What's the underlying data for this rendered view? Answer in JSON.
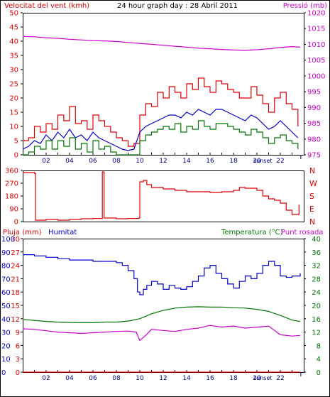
{
  "header": {
    "left_title": "Velocitat del vent (kmh)",
    "center_title": "24 hour graph day : 28 Abril 2011",
    "right_title": "Pressió (mb)"
  },
  "bottom_header": {
    "left_title_1": "Pluja (mm)",
    "left_title_2": "Humitat",
    "right_title_1": "Temperatura (°C)",
    "right_title_2": "Punt rosada"
  },
  "colors": {
    "wind_gust": "#dd0000",
    "wind_avg": "#0000cc",
    "wind_min": "#007700",
    "pressure": "#cc00cc",
    "direction": "#dd0000",
    "rain": "#dd0000",
    "humidity": "#0000cc",
    "temperature": "#007700",
    "dewpoint": "#cc00cc",
    "frame": "#000000",
    "grid": "#cccccc",
    "bg": "#ffffff"
  },
  "chart_data": [
    {
      "id": "wind_pressure",
      "type": "line",
      "title": "24 hour graph day : 28 Abril 2011",
      "xlabel": "",
      "x_ticks": [
        "02",
        "04",
        "06",
        "08",
        "10",
        "12",
        "14",
        "16",
        "18",
        "20",
        "22"
      ],
      "annotation": "sunset",
      "ylabel_left": "Velocitat del vent (kmh)",
      "ylim_left": [
        0,
        50
      ],
      "yticks_left": [
        0,
        5,
        10,
        15,
        20,
        25,
        30,
        35,
        40,
        45,
        50
      ],
      "ylabel_right": "Pressió (mb)",
      "ylim_right": [
        975,
        1020
      ],
      "yticks_right": [
        975,
        980,
        985,
        990,
        995,
        1000,
        1005,
        1010,
        1015,
        1020
      ],
      "grid": false,
      "series": [
        {
          "key": "wind_gust",
          "axis": "left",
          "step": true,
          "x": [
            0,
            0.5,
            1.0,
            1.5,
            2.0,
            2.5,
            3.0,
            3.5,
            4.0,
            4.5,
            5.0,
            5.5,
            6.0,
            6.5,
            7.0,
            7.5,
            8.0,
            8.5,
            9.0,
            9.5,
            10.0,
            10.5,
            11.0,
            11.5,
            12.0,
            12.5,
            13.0,
            13.5,
            14.0,
            14.5,
            15.0,
            15.5,
            16.0,
            16.5,
            17.0,
            17.5,
            18.0,
            18.5,
            19.0,
            19.5,
            20.0,
            20.5,
            21.0,
            21.5,
            22.0,
            22.5,
            23.0,
            23.5
          ],
          "y": [
            5,
            6,
            10,
            8,
            11,
            9,
            14,
            12,
            17,
            11,
            12,
            9,
            14,
            12,
            10,
            8,
            6,
            5,
            3,
            4,
            14,
            18,
            17,
            22,
            20,
            24,
            22,
            20,
            25,
            23,
            27,
            24,
            22,
            26,
            25,
            23,
            22,
            20,
            20,
            24,
            21,
            18,
            15,
            20,
            22,
            18,
            16,
            10
          ]
        },
        {
          "key": "wind_avg",
          "axis": "left",
          "step": false,
          "x": [
            0,
            0.5,
            1.0,
            1.5,
            2.0,
            2.5,
            3.0,
            3.5,
            4.0,
            4.5,
            5.0,
            5.5,
            6.0,
            6.5,
            7.0,
            7.5,
            8.0,
            8.5,
            9.0,
            9.5,
            10.0,
            10.5,
            11.0,
            11.5,
            12.0,
            12.5,
            13.0,
            13.5,
            14.0,
            14.5,
            15.0,
            15.5,
            16.0,
            16.5,
            17.0,
            17.5,
            18.0,
            18.5,
            19.0,
            19.5,
            20.0,
            20.5,
            21.0,
            21.5,
            22.0,
            22.5,
            23.0,
            23.5
          ],
          "y": [
            2,
            3,
            5,
            4,
            7,
            5,
            8,
            6,
            9,
            6,
            7,
            5,
            8,
            6,
            5,
            4,
            3,
            2,
            1.5,
            2,
            8,
            10,
            11,
            12,
            13,
            14,
            14,
            13,
            15,
            14,
            16,
            15,
            14,
            16,
            16,
            15,
            14,
            13,
            12,
            14,
            13,
            11,
            9,
            10,
            12,
            10,
            8,
            6
          ]
        },
        {
          "key": "wind_min",
          "axis": "left",
          "step": true,
          "x": [
            0,
            0.5,
            1.0,
            1.5,
            2.0,
            2.5,
            3.0,
            3.5,
            4.0,
            4.5,
            5.0,
            5.5,
            6.0,
            6.5,
            7.0,
            7.5,
            8.0,
            8.5,
            9.0,
            9.5,
            10.0,
            10.5,
            11.0,
            11.5,
            12.0,
            12.5,
            13.0,
            13.5,
            14.0,
            14.5,
            15.0,
            15.5,
            16.0,
            16.5,
            17.0,
            17.5,
            18.0,
            18.5,
            19.0,
            19.5,
            20.0,
            20.5,
            21.0,
            21.5,
            22.0,
            22.5,
            23.0,
            23.5
          ],
          "y": [
            0,
            1,
            3,
            2,
            5,
            2,
            5,
            3,
            6,
            2,
            4,
            1,
            5,
            2,
            3,
            1,
            0,
            0,
            0,
            0,
            5,
            7,
            8,
            9,
            10,
            9,
            11,
            8,
            10,
            9,
            12,
            10,
            9,
            11,
            11,
            10,
            9,
            8,
            7,
            9,
            8,
            6,
            4,
            6,
            7,
            5,
            4,
            2
          ]
        },
        {
          "key": "pressure",
          "axis": "right",
          "step": false,
          "x": [
            0,
            1,
            2,
            3,
            4,
            5,
            6,
            7,
            8,
            9,
            10,
            11,
            12,
            13,
            14,
            15,
            16,
            17,
            18,
            19,
            20,
            21,
            22,
            23,
            23.7
          ],
          "y": [
            1012.5,
            1012.4,
            1012.1,
            1011.9,
            1011.6,
            1011.4,
            1011.2,
            1011.1,
            1010.9,
            1010.6,
            1010.3,
            1010.0,
            1009.7,
            1009.4,
            1009.1,
            1008.8,
            1008.6,
            1008.4,
            1008.2,
            1008.1,
            1008.3,
            1008.6,
            1009.0,
            1009.3,
            1009.1
          ]
        }
      ]
    },
    {
      "id": "wind_direction",
      "type": "line",
      "title": "",
      "x_ticks": [],
      "ylabel_left": "",
      "ylim_left": [
        0,
        360
      ],
      "yticks_left": [
        0,
        90,
        180,
        270,
        360
      ],
      "labels_right": [
        "N",
        "W",
        "S",
        "E",
        "N"
      ],
      "grid": false,
      "series": [
        {
          "key": "direction",
          "axis": "left",
          "step": true,
          "x": [
            0,
            1.0,
            1.1,
            2,
            3,
            4,
            5,
            6,
            6.8,
            6.8,
            6.95,
            6.95,
            8,
            9,
            9.9,
            10.0,
            10.3,
            10.6,
            11,
            12,
            13,
            14,
            15,
            16,
            17,
            18,
            18.5,
            19,
            20,
            20.5,
            21,
            21.5,
            22,
            22.5,
            23,
            23.6
          ],
          "y": [
            345,
            340,
            10,
            15,
            10,
            15,
            20,
            22,
            25,
            350,
            350,
            25,
            20,
            22,
            25,
            280,
            290,
            260,
            240,
            230,
            220,
            210,
            210,
            205,
            210,
            220,
            240,
            235,
            220,
            180,
            160,
            150,
            130,
            80,
            50,
            120
          ]
        }
      ]
    },
    {
      "id": "rain_humidity_temp",
      "type": "line",
      "title": "",
      "x_ticks": [
        "02",
        "04",
        "06",
        "08",
        "10",
        "12",
        "14",
        "16",
        "18",
        "20",
        "22"
      ],
      "annotation": "sunset",
      "ylabel_left": "Pluja (mm)",
      "ylim_left_rain": [
        0,
        30
      ],
      "yticks_left_rain": [
        0,
        3,
        6,
        9,
        12,
        15,
        18,
        21,
        24,
        27,
        30
      ],
      "ylabel_left_2": "Humitat",
      "ylim_left_humidity": [
        0,
        100
      ],
      "yticks_left_humidity": [
        0,
        10,
        20,
        30,
        40,
        50,
        60,
        70,
        80,
        90,
        100
      ],
      "ylabel_right": "Temperatura (°C)",
      "ylabel_right_2": "Punt rosada",
      "ylim_right": [
        0,
        40
      ],
      "yticks_right": [
        0,
        4,
        8,
        12,
        16,
        20,
        24,
        28,
        32,
        36,
        40
      ],
      "grid": false,
      "series": [
        {
          "key": "rain",
          "axis": "left_rain",
          "step": false,
          "x": [
            0,
            23.7
          ],
          "y": [
            0,
            0
          ]
        },
        {
          "key": "humidity",
          "axis": "left_humidity",
          "step": true,
          "x": [
            0,
            1,
            2,
            3,
            4,
            5,
            6,
            7,
            8,
            8.5,
            9,
            9.5,
            9.8,
            10,
            10.3,
            10.6,
            11,
            11.5,
            12,
            12.5,
            13,
            13.5,
            14,
            14.5,
            15,
            15.5,
            16,
            16.5,
            17,
            17.5,
            18,
            18.5,
            19,
            19.5,
            20,
            20.5,
            21,
            21.5,
            22,
            22.5,
            23,
            23.7
          ],
          "y": [
            88,
            87,
            86,
            85,
            84,
            84,
            83,
            83,
            82,
            80,
            76,
            70,
            60,
            58,
            62,
            65,
            68,
            66,
            62,
            65,
            63,
            62,
            64,
            68,
            72,
            78,
            80,
            74,
            70,
            66,
            63,
            68,
            72,
            70,
            74,
            80,
            83,
            80,
            72,
            71,
            72,
            74
          ]
        },
        {
          "key": "temperature",
          "axis": "right",
          "step": false,
          "x": [
            0,
            1,
            2,
            3,
            4,
            5,
            6,
            7,
            8,
            9,
            10,
            11,
            12,
            13,
            14,
            15,
            16,
            17,
            18,
            19,
            20,
            21,
            22,
            23,
            23.7
          ],
          "y": [
            15.8,
            15.5,
            15.2,
            15,
            14.9,
            14.8,
            14.8,
            15,
            15,
            15.3,
            16,
            17.5,
            18.5,
            19.2,
            19.5,
            19.6,
            19.5,
            19.5,
            19.3,
            19.2,
            18.8,
            18.2,
            17,
            15.6,
            15.2
          ]
        },
        {
          "key": "dewpoint",
          "axis": "right",
          "step": false,
          "x": [
            0,
            1,
            2,
            3,
            4,
            5,
            6,
            7,
            8,
            9,
            9.7,
            10,
            10.5,
            11,
            12,
            13,
            14,
            15,
            16,
            17,
            18,
            19,
            20,
            21,
            22,
            23,
            23.7
          ],
          "y": [
            13,
            12.8,
            12.4,
            12,
            11.8,
            11.6,
            11.8,
            12,
            12.2,
            12.3,
            12,
            9.5,
            11,
            12.8,
            12.5,
            12.2,
            12.8,
            13.2,
            14,
            13.5,
            13.8,
            13.2,
            13.5,
            13.8,
            11.2,
            10.8,
            11
          ]
        }
      ]
    }
  ]
}
